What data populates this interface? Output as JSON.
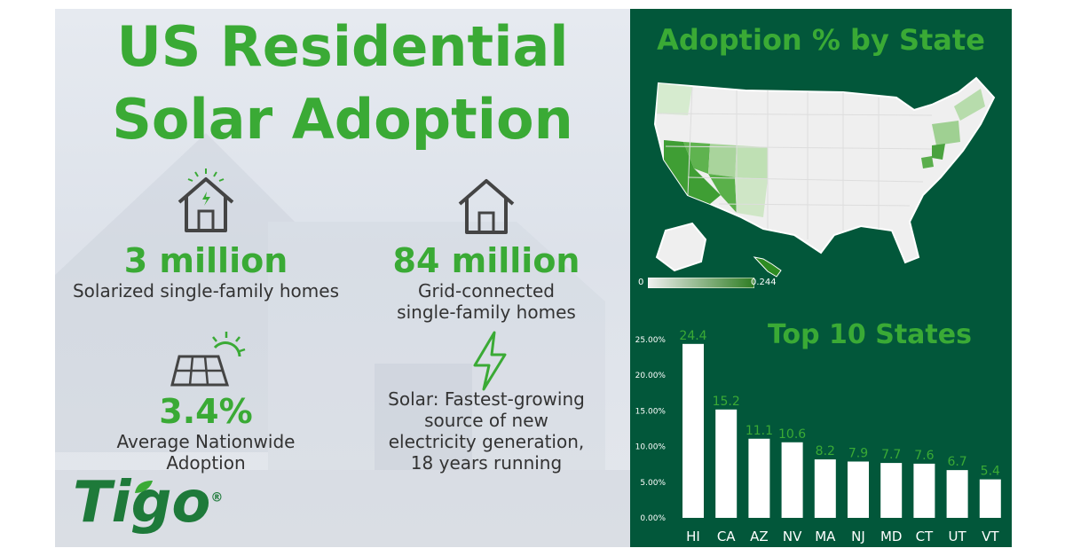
{
  "title_line1": "US Residential",
  "title_line2": "Solar Adoption",
  "stats": [
    {
      "value": "3 million",
      "label": "Solarized single-family homes",
      "icon": "house-sun-icon"
    },
    {
      "value": "84 million",
      "label1": "Grid-connected",
      "label2": "single-family homes",
      "icon": "house-icon"
    },
    {
      "value": "3.4%",
      "label1": "Average Nationwide",
      "label2": "Adoption",
      "icon": "solar-panel-icon"
    },
    {
      "label1": "Solar: Fastest-growing",
      "label2": "source of new",
      "label3": "electricity generation,",
      "label4": "18 years running",
      "icon": "lightning-icon"
    }
  ],
  "logo": {
    "text": "Tigo",
    "mark": "®"
  },
  "map": {
    "title": "Adoption % by State",
    "legend_min": "0",
    "legend_max": "0.244",
    "colors": {
      "low": "#f0f0f0",
      "high": "#2e8b22"
    }
  },
  "colors": {
    "accent": "#3aaa35",
    "panel": "#02573a"
  },
  "chart_data": {
    "type": "bar",
    "title": "Top 10 States",
    "categories": [
      "HI",
      "CA",
      "AZ",
      "NV",
      "MA",
      "NJ",
      "MD",
      "CT",
      "UT",
      "VT"
    ],
    "values": [
      24.4,
      15.2,
      11.1,
      10.6,
      8.2,
      7.9,
      7.7,
      7.6,
      6.7,
      5.4
    ],
    "data_labels": [
      "24.4",
      "15.2",
      "11.1",
      "10.6",
      "8.2",
      "7.9",
      "7.7",
      "7.6",
      "6.7",
      "5.4"
    ],
    "yticks": [
      "0.00%",
      "5.00%",
      "10.00%",
      "15.00%",
      "20.00%",
      "25.00%"
    ],
    "ylim": [
      0,
      25
    ],
    "grid": false,
    "bar_color": "#ffffff",
    "label_color": "#3aaa35"
  }
}
